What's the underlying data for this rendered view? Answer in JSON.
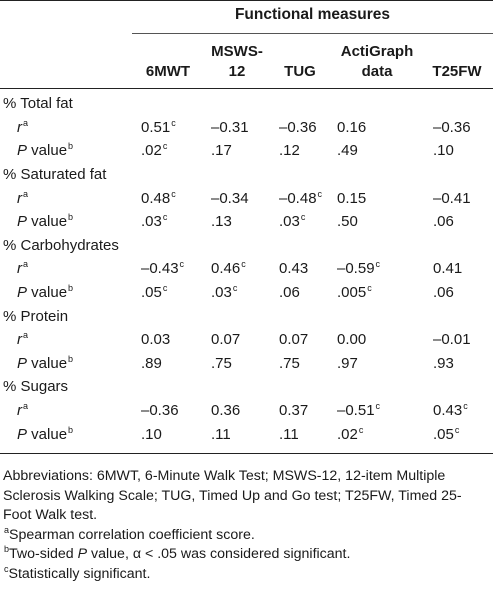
{
  "header": {
    "group": "Functional measures",
    "columns": [
      "6MWT",
      "MSWS-\n12",
      "TUG",
      "ActiGraph\ndata",
      "T25FW"
    ]
  },
  "rows": [
    {
      "type": "section",
      "label": "% Total fat"
    },
    {
      "type": "r",
      "label": "r",
      "sup": "a",
      "cells": [
        [
          "0.51",
          "c"
        ],
        [
          "–0.31",
          ""
        ],
        [
          "–0.36",
          ""
        ],
        [
          "0.16",
          ""
        ],
        [
          "–0.36",
          ""
        ]
      ]
    },
    {
      "type": "p",
      "label": "P value",
      "sup": "b",
      "cells": [
        [
          ".02",
          "c"
        ],
        [
          ".17",
          ""
        ],
        [
          ".12",
          ""
        ],
        [
          ".49",
          ""
        ],
        [
          ".10",
          ""
        ]
      ]
    },
    {
      "type": "section",
      "label": "% Saturated fat"
    },
    {
      "type": "r",
      "label": "r",
      "sup": "a",
      "cells": [
        [
          "0.48",
          "c"
        ],
        [
          "–0.34",
          ""
        ],
        [
          "–0.48",
          "c"
        ],
        [
          "0.15",
          ""
        ],
        [
          "–0.41",
          ""
        ]
      ]
    },
    {
      "type": "p",
      "label": "P value",
      "sup": "b",
      "cells": [
        [
          ".03",
          "c"
        ],
        [
          ".13",
          ""
        ],
        [
          ".03",
          "c"
        ],
        [
          ".50",
          ""
        ],
        [
          ".06",
          ""
        ]
      ]
    },
    {
      "type": "section",
      "label": "% Carbohydrates"
    },
    {
      "type": "r",
      "label": "r",
      "sup": "a",
      "cells": [
        [
          "–0.43",
          "c"
        ],
        [
          "0.46",
          "c"
        ],
        [
          "0.43",
          ""
        ],
        [
          "–0.59",
          "c"
        ],
        [
          "0.41",
          ""
        ]
      ]
    },
    {
      "type": "p",
      "label": "P value",
      "sup": "b",
      "cells": [
        [
          ".05",
          "c"
        ],
        [
          ".03",
          "c"
        ],
        [
          ".06",
          ""
        ],
        [
          ".005",
          "c"
        ],
        [
          ".06",
          ""
        ]
      ]
    },
    {
      "type": "section",
      "label": "% Protein"
    },
    {
      "type": "r",
      "label": "r",
      "sup": "a",
      "cells": [
        [
          "0.03",
          ""
        ],
        [
          "0.07",
          ""
        ],
        [
          "0.07",
          ""
        ],
        [
          "0.00",
          ""
        ],
        [
          "–0.01",
          ""
        ]
      ]
    },
    {
      "type": "p",
      "label": "P value",
      "sup": "b",
      "cells": [
        [
          ".89",
          ""
        ],
        [
          ".75",
          ""
        ],
        [
          ".75",
          ""
        ],
        [
          ".97",
          ""
        ],
        [
          ".93",
          ""
        ]
      ]
    },
    {
      "type": "section",
      "label": "% Sugars"
    },
    {
      "type": "r",
      "label": "r",
      "sup": "a",
      "cells": [
        [
          "–0.36",
          ""
        ],
        [
          "0.36",
          ""
        ],
        [
          "0.37",
          ""
        ],
        [
          "–0.51",
          "c"
        ],
        [
          "0.43",
          "c"
        ]
      ]
    },
    {
      "type": "p",
      "label": "P value",
      "sup": "b",
      "cells": [
        [
          ".10",
          ""
        ],
        [
          ".11",
          ""
        ],
        [
          ".11",
          ""
        ],
        [
          ".02",
          "c"
        ],
        [
          ".05",
          "c"
        ]
      ]
    }
  ],
  "notes": {
    "abbreviations": "Abbreviations: 6MWT, 6-Minute Walk Test; MSWS-12, 12-item Multiple Sclerosis Walking Scale; TUG, Timed Up and Go test; T25FW, Timed 25-Foot Walk test.",
    "footnotes": [
      {
        "mark": "a",
        "parts": [
          {
            "t": "Spearman correlation coefficient score.",
            "i": false
          }
        ]
      },
      {
        "mark": "b",
        "parts": [
          {
            "t": "Two-sided ",
            "i": false
          },
          {
            "t": "P",
            "i": true
          },
          {
            "t": " value, α < .05 was considered significant.",
            "i": false
          }
        ]
      },
      {
        "mark": "c",
        "parts": [
          {
            "t": "Statistically significant.",
            "i": false
          }
        ]
      }
    ]
  }
}
